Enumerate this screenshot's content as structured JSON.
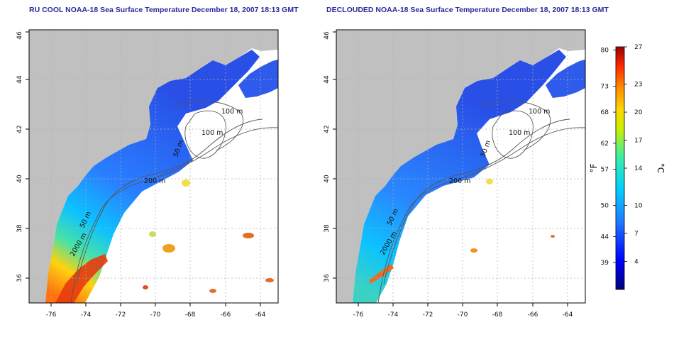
{
  "panels": [
    {
      "id": "left",
      "title": "RU COOL NOAA-18 Sea Surface Temperature December 18, 2007 18:13 GMT",
      "contour_labels": [
        "100 m",
        "100 m",
        "50 m",
        "200 m",
        "50 m",
        "2000 m"
      ]
    },
    {
      "id": "right",
      "title": "DECLOUDED NOAA-18 Sea Surface Temperature December 18, 2007 18:13 GMT",
      "contour_labels": [
        "100 m",
        "100 m",
        "50 m",
        "200 m",
        "50 m",
        "2000 m"
      ]
    }
  ],
  "axes": {
    "x_ticks": [
      "-76",
      "-74",
      "-72",
      "-70",
      "-68",
      "-66",
      "-64"
    ],
    "y_ticks": [
      "36",
      "38",
      "40",
      "42",
      "44",
      "46"
    ],
    "x_range": [
      -77.2,
      -63.0
    ],
    "y_range": [
      35.0,
      46.0
    ]
  },
  "colorbar": {
    "label_f": "°F",
    "label_c": "°C",
    "f_ticks": [
      "80",
      "73",
      "68",
      "62",
      "57",
      "50",
      "44",
      "39"
    ],
    "c_ticks": [
      "27",
      "23",
      "20",
      "17",
      "14",
      "10",
      "7",
      "4"
    ],
    "c_range": [
      1,
      27
    ]
  },
  "colors": {
    "land": "#c0c0c0",
    "grid": "#b0b0b0",
    "contour": "#555555",
    "title": "#2a2a9c"
  }
}
